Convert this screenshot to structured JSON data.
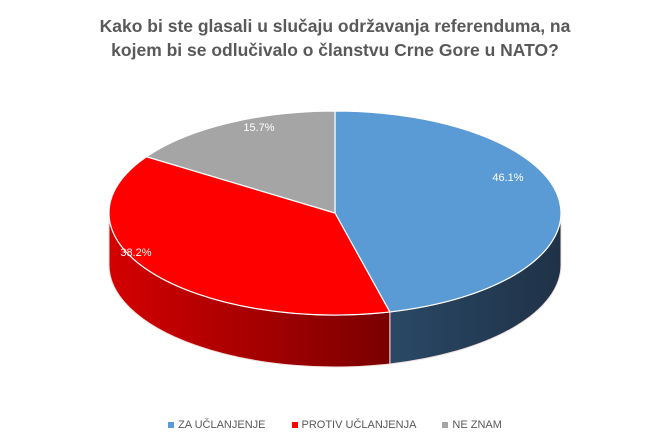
{
  "title_lines": [
    "Kako bi ste glasali u slučaju održavanja referenduma, na",
    "kojem bi se odlučivalo o članstvu Crne Gore u NATO?"
  ],
  "chart_data": {
    "type": "pie",
    "style": "3d",
    "title": "Kako bi ste glasali u slučaju održavanja referenduma, na kojem bi se odlučivalo o članstvu Crne Gore u NATO?",
    "categories": [
      "ZA UČLANJENJE",
      "PROTIV UČLANJENJA",
      "NE ZNAM"
    ],
    "values": [
      46.1,
      38.2,
      15.7
    ],
    "labels": [
      "46.1%",
      "38.2%",
      "15.7%"
    ],
    "colors": [
      "#5b9bd5",
      "#ff0000",
      "#a5a5a5"
    ],
    "side_colors": [
      "#223a53",
      "#a00000",
      "#6e6e6e"
    ],
    "legend_position": "bottom"
  },
  "legend": [
    {
      "label": "ZA UČLANJENJE",
      "color": "#5b9bd5"
    },
    {
      "label": "PROTIV UČLANJENJA",
      "color": "#ff0000"
    },
    {
      "label": "NE ZNAM",
      "color": "#a5a5a5"
    }
  ]
}
